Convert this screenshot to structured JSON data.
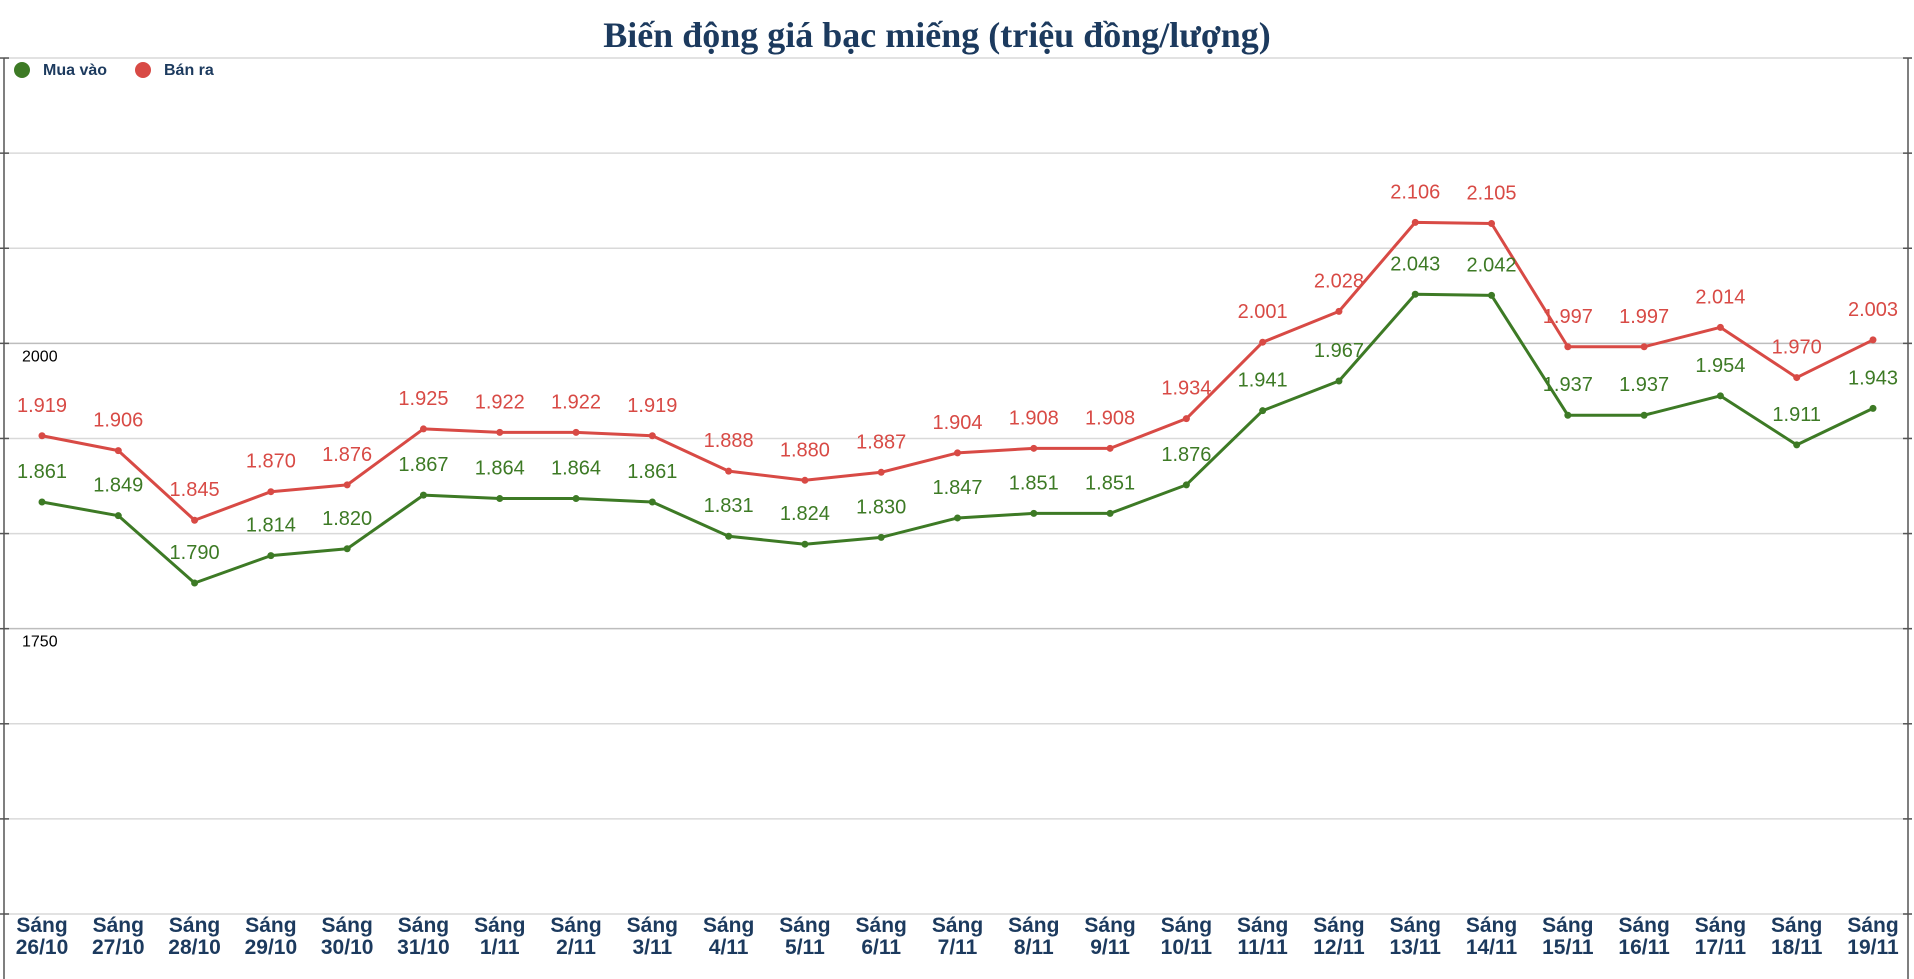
{
  "chart_data": {
    "type": "line",
    "title": "Biến động giá bạc miếng (triệu đồng/lượng)",
    "categories": [
      [
        "Sáng",
        "26/10"
      ],
      [
        "Sáng",
        "27/10"
      ],
      [
        "Sáng",
        "28/10"
      ],
      [
        "Sáng",
        "29/10"
      ],
      [
        "Sáng",
        "30/10"
      ],
      [
        "Sáng",
        "31/10"
      ],
      [
        "Sáng",
        "1/11"
      ],
      [
        "Sáng",
        "2/11"
      ],
      [
        "Sáng",
        "3/11"
      ],
      [
        "Sáng",
        "4/11"
      ],
      [
        "Sáng",
        "5/11"
      ],
      [
        "Sáng",
        "6/11"
      ],
      [
        "Sáng",
        "7/11"
      ],
      [
        "Sáng",
        "8/11"
      ],
      [
        "Sáng",
        "9/11"
      ],
      [
        "Sáng",
        "10/11"
      ],
      [
        "Sáng",
        "11/11"
      ],
      [
        "Sáng",
        "12/11"
      ],
      [
        "Sáng",
        "13/11"
      ],
      [
        "Sáng",
        "14/11"
      ],
      [
        "Sáng",
        "15/11"
      ],
      [
        "Sáng",
        "16/11"
      ],
      [
        "Sáng",
        "17/11"
      ],
      [
        "Sáng",
        "18/11"
      ],
      [
        "Sáng",
        "19/11"
      ]
    ],
    "series": [
      {
        "name": "Mua vào",
        "color": "#3d7a25",
        "values": [
          1861,
          1849,
          1790,
          1814,
          1820,
          1867,
          1864,
          1864,
          1861,
          1831,
          1824,
          1830,
          1847,
          1851,
          1851,
          1876,
          1941,
          1967,
          2043,
          2042,
          1937,
          1937,
          1954,
          1911,
          1943
        ],
        "labels": [
          "1.861",
          "1.849",
          "1.790",
          "1.814",
          "1.820",
          "1.867",
          "1.864",
          "1.864",
          "1.861",
          "1.831",
          "1.824",
          "1.830",
          "1.847",
          "1.851",
          "1.851",
          "1.876",
          "1.941",
          "1.967",
          "2.043",
          "2.042",
          "1.937",
          "1.937",
          "1.954",
          "1.911",
          "1.943"
        ]
      },
      {
        "name": "Bán ra",
        "color": "#d84a45",
        "values": [
          1919,
          1906,
          1845,
          1870,
          1876,
          1925,
          1922,
          1922,
          1919,
          1888,
          1880,
          1887,
          1904,
          1908,
          1908,
          1934,
          2001,
          2028,
          2106,
          2105,
          1997,
          1997,
          2014,
          1970,
          2003
        ],
        "labels": [
          "1.919",
          "1.906",
          "1.845",
          "1.870",
          "1.876",
          "1.925",
          "1.922",
          "1.922",
          "1.919",
          "1.888",
          "1.880",
          "1.887",
          "1.904",
          "1.908",
          "1.908",
          "1.934",
          "2.001",
          "2.028",
          "2.106",
          "2.105",
          "1.997",
          "1.997",
          "2.014",
          "1.970",
          "2.003"
        ]
      }
    ],
    "y_ticks": [
      {
        "value": 2000,
        "label": "2000"
      },
      {
        "value": 1750,
        "label": "1750"
      }
    ],
    "ylim": [
      1500,
      2250
    ],
    "gridlines_minor_step": 83.33,
    "legend_position": "top-left",
    "xlabel": "",
    "ylabel": ""
  }
}
